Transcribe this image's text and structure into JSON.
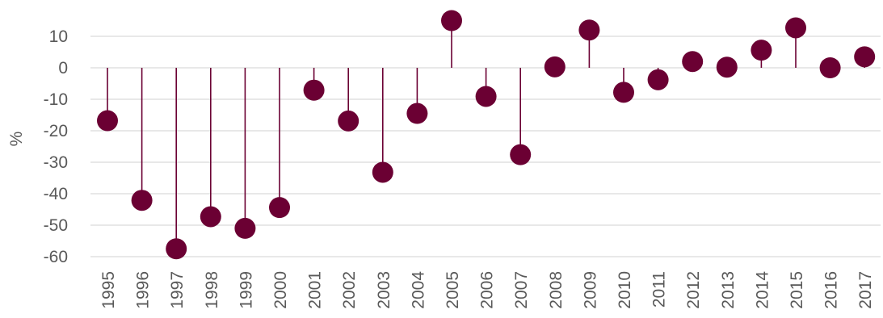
{
  "chart_data": {
    "type": "lollipop",
    "ylabel": "%",
    "ylim": [
      -60,
      10
    ],
    "yticks": [
      10,
      0,
      -10,
      -20,
      -30,
      -40,
      -50,
      -60
    ],
    "grid": true,
    "color": "#6b0033",
    "categories": [
      "1995",
      "1996",
      "1997",
      "1998",
      "1999",
      "2000",
      "2001",
      "2002",
      "2003",
      "2004",
      "2005",
      "2006",
      "2007",
      "2008",
      "2009",
      "2010",
      "2011",
      "2012",
      "2013",
      "2014",
      "2015",
      "2016",
      "2017"
    ],
    "values": [
      -16.8,
      -42.1,
      -57.5,
      -47.3,
      -51.0,
      -44.4,
      -7.1,
      -16.9,
      -33.2,
      -14.5,
      15.0,
      -9.1,
      -27.6,
      0.3,
      12.0,
      -7.8,
      -3.8,
      2.0,
      0.2,
      5.6,
      12.7,
      0.0,
      3.5
    ]
  }
}
